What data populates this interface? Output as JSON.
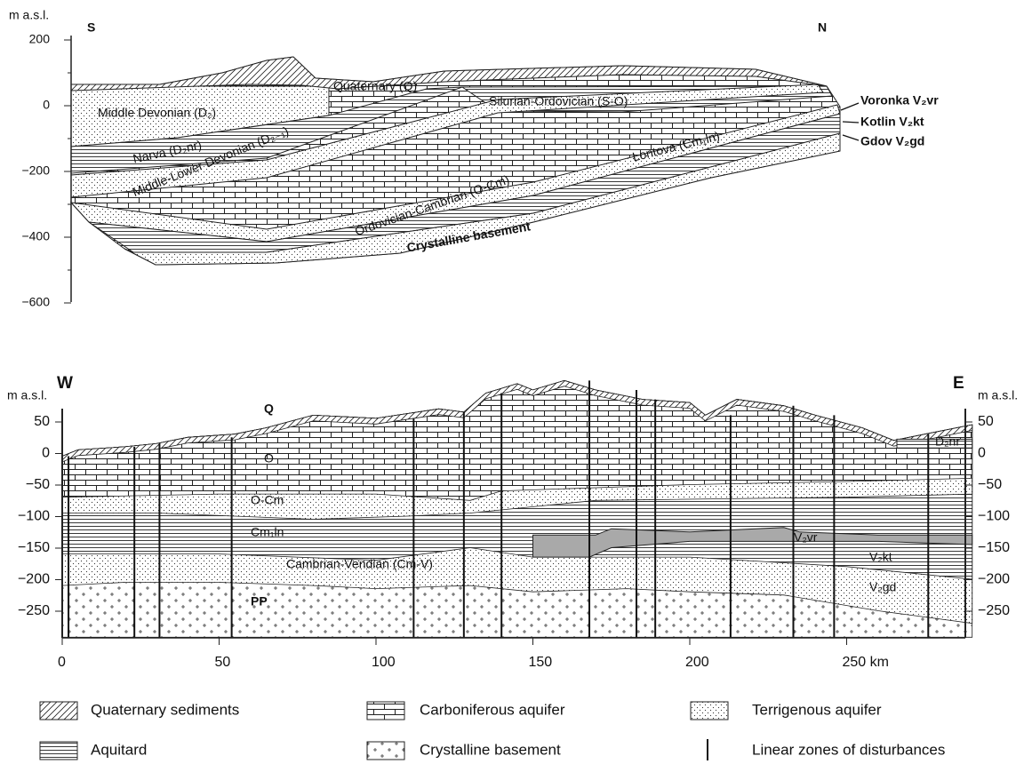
{
  "top_section": {
    "axis_label": "m a.s.l.",
    "yticks": [
      "200",
      "0",
      "−200",
      "−400",
      "−600"
    ],
    "direction_left": "S",
    "direction_right": "N",
    "labels": {
      "quaternary": "Quaternary (Q)",
      "middle_devonian": "Middle Devonian (D₂)",
      "silurian_ordovician": "Silurian-Ordovician (S-O)",
      "narva": "Narva (D₂nr)",
      "middle_lower_devonian": "Middle-Lower Devonian (D₂₋₁)",
      "ordovician_cambrian": "Ordovician-Cambrian (O-Cm)",
      "lontova": "Lontova (Cm₁ln)",
      "crystalline": "Crystalline basement"
    },
    "side_labels": [
      "Voronka V₂vr",
      "Kotlin V₂kt",
      "Gdov V₂gd"
    ]
  },
  "bottom_section": {
    "axis_label_left": "m a.s.l.",
    "axis_label_right": "m a.s.l.",
    "yticks": [
      "50",
      "0",
      "−50",
      "−100",
      "−150",
      "−200",
      "−250"
    ],
    "xticks": [
      "0",
      "50",
      "100",
      "150",
      "200",
      "250 km"
    ],
    "direction_left": "W",
    "direction_right": "E",
    "labels": {
      "q": "Q",
      "o": "O",
      "d2nr": "D₂nr",
      "ocm": "O-Cm",
      "cmln": "Cm₁ln",
      "cmv": "Cambrian-Vendian (Cm-V)",
      "pp": "PP",
      "v2vr": "V₂vr",
      "v2kt": "V₂kt",
      "v2gd": "V₂gd"
    }
  },
  "legend": [
    "Quaternary sediments",
    "Carboniferous aquifer",
    "Terrigenous aquifer",
    "Aquitard",
    "Crystalline basement",
    "Linear zones of disturbances"
  ]
}
